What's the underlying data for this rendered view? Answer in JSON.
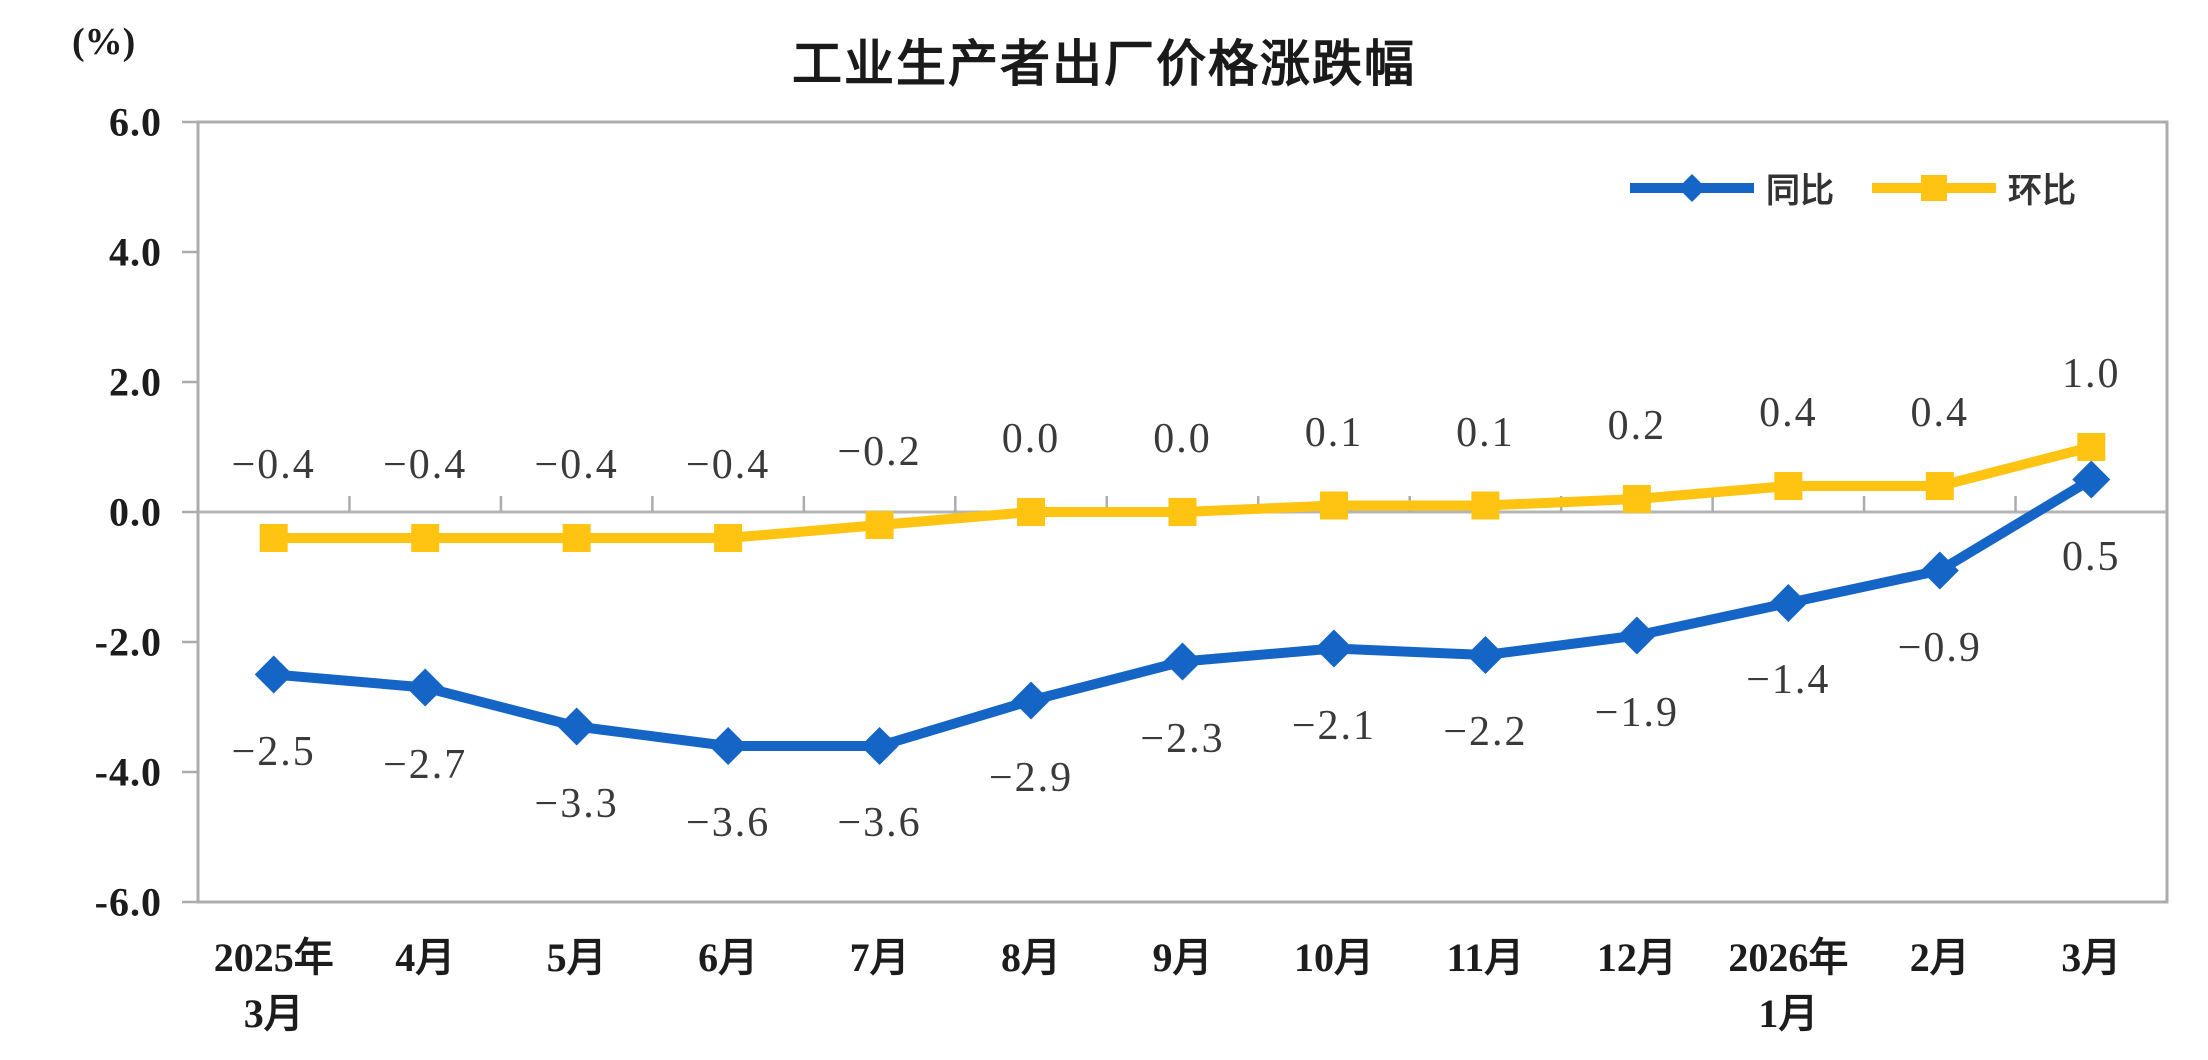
{
  "chart_data": {
    "type": "line",
    "title": "工业生产者出厂价格涨跌幅",
    "unit_label": "(%)",
    "categories": [
      [
        "2025年",
        "3月"
      ],
      [
        "4月"
      ],
      [
        "5月"
      ],
      [
        "6月"
      ],
      [
        "7月"
      ],
      [
        "8月"
      ],
      [
        "9月"
      ],
      [
        "10月"
      ],
      [
        "11月"
      ],
      [
        "12月"
      ],
      [
        "2026年",
        "1月"
      ],
      [
        "2月"
      ],
      [
        "3月"
      ]
    ],
    "series": [
      {
        "name": "同比",
        "color": "#1565c6",
        "marker": "diamond",
        "label_position": "below",
        "values": [
          -2.5,
          -2.7,
          -3.3,
          -3.6,
          -3.6,
          -2.9,
          -2.3,
          -2.1,
          -2.2,
          -1.9,
          -1.4,
          -0.9,
          0.5
        ]
      },
      {
        "name": "环比",
        "color": "#ffc412",
        "marker": "square",
        "label_position": "above",
        "values": [
          -0.4,
          -0.4,
          -0.4,
          -0.4,
          -0.2,
          0.0,
          0.0,
          0.1,
          0.1,
          0.2,
          0.4,
          0.4,
          1.0
        ]
      }
    ],
    "y_axis": {
      "min": -6.0,
      "max": 6.0,
      "step": 2.0,
      "tick_labels": [
        "6.0",
        "4.0",
        "2.0",
        "0.0",
        "-2.0",
        "-4.0",
        "-6.0"
      ]
    },
    "legend": {
      "position": "top-right"
    },
    "grid": {
      "zero_line_only": true
    },
    "colors": {
      "plot_border": "#acacac",
      "zero_line": "#b5b5b5",
      "tick": "#acacac"
    }
  }
}
